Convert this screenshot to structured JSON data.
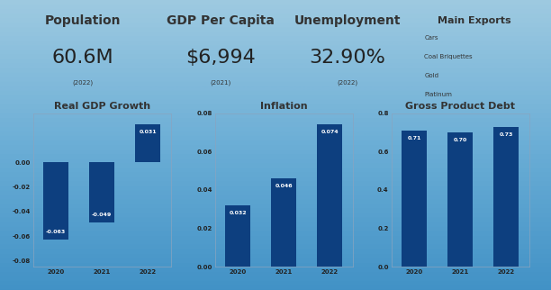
{
  "header": {
    "kpis": [
      {
        "title": "Population",
        "value": "60.6M",
        "year": "(2022)"
      },
      {
        "title": "GDP Per Capita",
        "value": "$6,994",
        "year": "(2021)"
      },
      {
        "title": "Unemployment",
        "value": "32.90%",
        "year": "(2022)"
      }
    ],
    "exports": {
      "title": "Main Exports",
      "items": [
        "Cars",
        "Coal Briquettes",
        "Gold",
        "Platinum"
      ]
    }
  },
  "chart_data": [
    {
      "type": "bar",
      "title": "Real GDP Growth",
      "categories": [
        "2020",
        "2021",
        "2022"
      ],
      "values": [
        -0.063,
        -0.049,
        0.031
      ],
      "color": "#0d3f7f",
      "data_labels": true,
      "ylim": [
        -0.085,
        0.04
      ],
      "yticks": [
        {
          "value": -0.08,
          "label": "-0.08"
        },
        {
          "value": -0.06,
          "label": "-0.06"
        },
        {
          "value": -0.04,
          "label": "-0.04"
        },
        {
          "value": -0.02,
          "label": "-0.02"
        },
        {
          "value": 0,
          "label": "0.00"
        }
      ]
    },
    {
      "type": "bar",
      "title": "Inflation",
      "categories": [
        "2020",
        "2021",
        "2022"
      ],
      "values": [
        0.032,
        0.046,
        0.074
      ],
      "color": "#0d3f7f",
      "data_labels": true,
      "ylim": [
        0,
        0.08
      ],
      "yticks": [
        {
          "value": 0,
          "label": "0.00"
        },
        {
          "value": 0.02,
          "label": "0.02"
        },
        {
          "value": 0.04,
          "label": "0.04"
        },
        {
          "value": 0.06,
          "label": "0.06"
        },
        {
          "value": 0.08,
          "label": "0.08"
        }
      ]
    },
    {
      "type": "bar",
      "title": "Gross Product Debt",
      "categories": [
        "2020",
        "2021",
        "2022"
      ],
      "values": [
        0.71,
        0.7,
        0.73
      ],
      "value_labels": [
        "0.71",
        "0.70",
        "0.73"
      ],
      "color": "#0d3f7f",
      "data_labels": true,
      "ylim": [
        0,
        0.8
      ],
      "yticks": [
        {
          "value": 0,
          "label": "0.0"
        },
        {
          "value": 0.2,
          "label": "0.2"
        },
        {
          "value": 0.4,
          "label": "0.4"
        },
        {
          "value": 0.6,
          "label": "0.6"
        },
        {
          "value": 0.8,
          "label": "0.8"
        }
      ]
    }
  ]
}
